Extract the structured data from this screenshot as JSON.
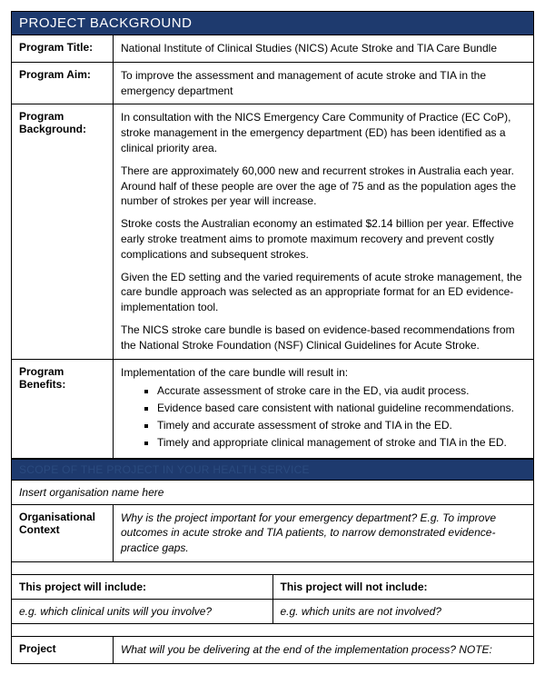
{
  "colors": {
    "header_bg": "#1e3a6e",
    "header_text": "#ffffff",
    "section_text": "#2a4a7f",
    "border": "#000000",
    "body_text": "#000000",
    "background": "#ffffff"
  },
  "header": "PROJECT BACKGROUND",
  "rows": {
    "title": {
      "label": "Program Title:",
      "value": "National Institute of Clinical Studies (NICS) Acute Stroke and TIA Care Bundle"
    },
    "aim": {
      "label": "Program Aim:",
      "value": "To improve the assessment and management of acute stroke and TIA in the emergency department"
    },
    "background": {
      "label": "Program Background:",
      "paragraphs": [
        "In consultation with the NICS Emergency Care Community of Practice (EC CoP), stroke management in the emergency department (ED) has been identified as a clinical priority area.",
        "There are approximately 60,000 new and recurrent strokes in Australia each year. Around half of these people are over the age of 75 and as the population ages the number of strokes per year will increase.",
        "Stroke costs the Australian economy an estimated $2.14 billion per year. Effective early stroke treatment aims to promote maximum recovery and prevent costly complications and subsequent strokes.",
        "Given the ED setting and the varied requirements of acute stroke management, the care bundle approach was selected as an appropriate format for an ED evidence-implementation tool.",
        "The NICS stroke care bundle is based on evidence-based recommendations from the National Stroke Foundation (NSF) Clinical Guidelines for Acute Stroke."
      ]
    },
    "benefits": {
      "label": "Program Benefits:",
      "intro": "Implementation of the care bundle will result in:",
      "items": [
        "Accurate assessment of stroke care in the ED, via audit process.",
        "Evidence based care consistent with national guideline recommendations.",
        "Timely and accurate assessment of stroke and TIA in the ED.",
        "Timely and appropriate clinical management of stroke and TIA in the ED."
      ]
    }
  },
  "section2": {
    "header": "SCOPE OF THE PROJECT IN YOUR HEALTH SERVICE",
    "org_name": "Insert organisation name here",
    "context": {
      "label": "Organisational Context",
      "value": "Why is the project important for your emergency department? E.g. To improve outcomes in acute stroke and TIA patients, to narrow demonstrated evidence-practice gaps."
    },
    "include": {
      "label": "This project will include:",
      "value": "e.g. which clinical units will you involve?"
    },
    "exclude": {
      "label": "This project will not include:",
      "value": "e.g. which units are not involved?"
    },
    "project": {
      "label": "Project",
      "value": "What will you be delivering at the end of the implementation process? NOTE:"
    }
  }
}
